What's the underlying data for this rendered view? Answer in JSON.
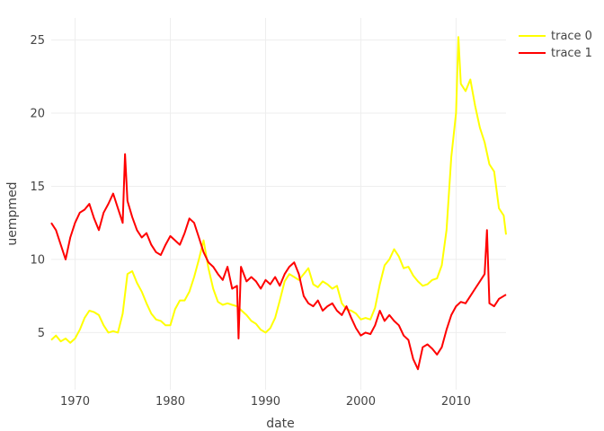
{
  "chart_data": {
    "type": "line",
    "title": "",
    "xlabel": "date",
    "ylabel": "uempmed",
    "x_axis_type": "date",
    "xlim": [
      "1967-07-01",
      "2015-04-01"
    ],
    "ylim": [
      1.1,
      26.5
    ],
    "x_ticks": [
      "1970",
      "1980",
      "1990",
      "2000",
      "2010"
    ],
    "y_ticks": [
      5,
      10,
      15,
      20,
      25
    ],
    "grid": true,
    "legend_position": "top-right",
    "series": [
      {
        "name": "trace 0",
        "color": "#ffff00",
        "points": [
          [
            "1967-07-01",
            4.5
          ],
          [
            "1968-01-01",
            4.8
          ],
          [
            "1968-07-01",
            4.4
          ],
          [
            "1969-01-01",
            4.6
          ],
          [
            "1969-07-01",
            4.3
          ],
          [
            "1970-01-01",
            4.6
          ],
          [
            "1970-07-01",
            5.2
          ],
          [
            "1971-01-01",
            6.0
          ],
          [
            "1971-07-01",
            6.5
          ],
          [
            "1972-01-01",
            6.4
          ],
          [
            "1972-07-01",
            6.2
          ],
          [
            "1973-01-01",
            5.5
          ],
          [
            "1973-07-01",
            5.0
          ],
          [
            "1974-01-01",
            5.1
          ],
          [
            "1974-07-01",
            5.0
          ],
          [
            "1975-01-01",
            6.3
          ],
          [
            "1975-07-01",
            9.0
          ],
          [
            "1976-01-01",
            9.2
          ],
          [
            "1976-07-01",
            8.4
          ],
          [
            "1977-01-01",
            7.8
          ],
          [
            "1977-07-01",
            7.0
          ],
          [
            "1978-01-01",
            6.3
          ],
          [
            "1978-07-01",
            5.9
          ],
          [
            "1979-01-01",
            5.8
          ],
          [
            "1979-07-01",
            5.5
          ],
          [
            "1980-01-01",
            5.5
          ],
          [
            "1980-07-01",
            6.6
          ],
          [
            "1981-01-01",
            7.2
          ],
          [
            "1981-07-01",
            7.2
          ],
          [
            "1982-01-01",
            7.8
          ],
          [
            "1982-07-01",
            8.8
          ],
          [
            "1983-01-01",
            10.0
          ],
          [
            "1983-07-01",
            11.3
          ],
          [
            "1984-01-01",
            9.4
          ],
          [
            "1984-07-01",
            8.0
          ],
          [
            "1985-01-01",
            7.1
          ],
          [
            "1985-07-01",
            6.9
          ],
          [
            "1986-01-01",
            7.0
          ],
          [
            "1986-07-01",
            6.9
          ],
          [
            "1987-01-01",
            6.8
          ],
          [
            "1987-07-01",
            6.5
          ],
          [
            "1988-01-01",
            6.2
          ],
          [
            "1988-07-01",
            5.8
          ],
          [
            "1989-01-01",
            5.6
          ],
          [
            "1989-07-01",
            5.2
          ],
          [
            "1990-01-01",
            5.0
          ],
          [
            "1990-07-01",
            5.3
          ],
          [
            "1991-01-01",
            6.0
          ],
          [
            "1991-07-01",
            7.2
          ],
          [
            "1992-01-01",
            8.5
          ],
          [
            "1992-07-01",
            9.0
          ],
          [
            "1993-01-01",
            8.8
          ],
          [
            "1993-07-01",
            8.6
          ],
          [
            "1994-01-01",
            9.0
          ],
          [
            "1994-07-01",
            9.4
          ],
          [
            "1995-01-01",
            8.3
          ],
          [
            "1995-07-01",
            8.1
          ],
          [
            "1996-01-01",
            8.5
          ],
          [
            "1996-07-01",
            8.3
          ],
          [
            "1997-01-01",
            8.0
          ],
          [
            "1997-07-01",
            8.2
          ],
          [
            "1998-01-01",
            7.0
          ],
          [
            "1998-07-01",
            6.6
          ],
          [
            "1999-01-01",
            6.5
          ],
          [
            "1999-07-01",
            6.3
          ],
          [
            "2000-01-01",
            5.9
          ],
          [
            "2000-07-01",
            6.0
          ],
          [
            "2001-01-01",
            5.9
          ],
          [
            "2001-07-01",
            6.7
          ],
          [
            "2002-01-01",
            8.3
          ],
          [
            "2002-07-01",
            9.6
          ],
          [
            "2003-01-01",
            10.0
          ],
          [
            "2003-07-01",
            10.7
          ],
          [
            "2004-01-01",
            10.2
          ],
          [
            "2004-07-01",
            9.4
          ],
          [
            "2005-01-01",
            9.5
          ],
          [
            "2005-07-01",
            8.9
          ],
          [
            "2006-01-01",
            8.5
          ],
          [
            "2006-07-01",
            8.2
          ],
          [
            "2007-01-01",
            8.3
          ],
          [
            "2007-07-01",
            8.6
          ],
          [
            "2008-01-01",
            8.7
          ],
          [
            "2008-07-01",
            9.6
          ],
          [
            "2009-01-01",
            12.0
          ],
          [
            "2009-07-01",
            17.0
          ],
          [
            "2010-01-01",
            20.0
          ],
          [
            "2010-04-01",
            25.2
          ],
          [
            "2010-07-01",
            22.0
          ],
          [
            "2011-01-01",
            21.5
          ],
          [
            "2011-07-01",
            22.3
          ],
          [
            "2012-01-01",
            20.5
          ],
          [
            "2012-07-01",
            19.0
          ],
          [
            "2013-01-01",
            18.0
          ],
          [
            "2013-07-01",
            16.5
          ],
          [
            "2014-01-01",
            16.0
          ],
          [
            "2014-07-01",
            13.5
          ],
          [
            "2015-01-01",
            13.0
          ],
          [
            "2015-04-01",
            11.7
          ]
        ]
      },
      {
        "name": "trace 1",
        "color": "#ff0000",
        "points": [
          [
            "1967-07-01",
            12.5
          ],
          [
            "1968-01-01",
            12.0
          ],
          [
            "1968-07-01",
            11.0
          ],
          [
            "1969-01-01",
            10.0
          ],
          [
            "1969-07-01",
            11.5
          ],
          [
            "1970-01-01",
            12.5
          ],
          [
            "1970-07-01",
            13.2
          ],
          [
            "1971-01-01",
            13.4
          ],
          [
            "1971-07-01",
            13.8
          ],
          [
            "1972-01-01",
            12.8
          ],
          [
            "1972-07-01",
            12.0
          ],
          [
            "1973-01-01",
            13.2
          ],
          [
            "1973-07-01",
            13.8
          ],
          [
            "1974-01-01",
            14.5
          ],
          [
            "1974-07-01",
            13.5
          ],
          [
            "1975-01-01",
            12.5
          ],
          [
            "1975-04-01",
            17.2
          ],
          [
            "1975-07-01",
            14.0
          ],
          [
            "1976-01-01",
            12.9
          ],
          [
            "1976-07-01",
            12.0
          ],
          [
            "1977-01-01",
            11.5
          ],
          [
            "1977-07-01",
            11.8
          ],
          [
            "1978-01-01",
            11.0
          ],
          [
            "1978-07-01",
            10.5
          ],
          [
            "1979-01-01",
            10.3
          ],
          [
            "1979-07-01",
            11.0
          ],
          [
            "1980-01-01",
            11.6
          ],
          [
            "1980-07-01",
            11.3
          ],
          [
            "1981-01-01",
            11.0
          ],
          [
            "1981-07-01",
            11.8
          ],
          [
            "1982-01-01",
            12.8
          ],
          [
            "1982-07-01",
            12.5
          ],
          [
            "1983-01-01",
            11.5
          ],
          [
            "1983-07-01",
            10.5
          ],
          [
            "1984-01-01",
            9.8
          ],
          [
            "1984-07-01",
            9.5
          ],
          [
            "1985-01-01",
            9.0
          ],
          [
            "1985-07-01",
            8.6
          ],
          [
            "1986-01-01",
            9.5
          ],
          [
            "1986-07-01",
            8.0
          ],
          [
            "1987-01-01",
            8.2
          ],
          [
            "1987-03-01",
            4.6
          ],
          [
            "1987-06-01",
            9.5
          ],
          [
            "1988-01-01",
            8.5
          ],
          [
            "1988-07-01",
            8.8
          ],
          [
            "1989-01-01",
            8.5
          ],
          [
            "1989-07-01",
            8.0
          ],
          [
            "1990-01-01",
            8.6
          ],
          [
            "1990-07-01",
            8.3
          ],
          [
            "1991-01-01",
            8.8
          ],
          [
            "1991-07-01",
            8.2
          ],
          [
            "1992-01-01",
            9.0
          ],
          [
            "1992-07-01",
            9.5
          ],
          [
            "1993-01-01",
            9.8
          ],
          [
            "1993-07-01",
            9.0
          ],
          [
            "1994-01-01",
            7.5
          ],
          [
            "1994-07-01",
            7.0
          ],
          [
            "1995-01-01",
            6.8
          ],
          [
            "1995-07-01",
            7.2
          ],
          [
            "1996-01-01",
            6.5
          ],
          [
            "1996-07-01",
            6.8
          ],
          [
            "1997-01-01",
            7.0
          ],
          [
            "1997-07-01",
            6.5
          ],
          [
            "1998-01-01",
            6.2
          ],
          [
            "1998-07-01",
            6.8
          ],
          [
            "1999-01-01",
            6.0
          ],
          [
            "1999-07-01",
            5.3
          ],
          [
            "2000-01-01",
            4.8
          ],
          [
            "2000-07-01",
            5.0
          ],
          [
            "2001-01-01",
            4.9
          ],
          [
            "2001-07-01",
            5.5
          ],
          [
            "2002-01-01",
            6.5
          ],
          [
            "2002-07-01",
            5.8
          ],
          [
            "2003-01-01",
            6.2
          ],
          [
            "2003-07-01",
            5.8
          ],
          [
            "2004-01-01",
            5.5
          ],
          [
            "2004-07-01",
            4.8
          ],
          [
            "2005-01-01",
            4.5
          ],
          [
            "2005-07-01",
            3.2
          ],
          [
            "2006-01-01",
            2.5
          ],
          [
            "2006-07-01",
            4.0
          ],
          [
            "2007-01-01",
            4.2
          ],
          [
            "2007-07-01",
            3.9
          ],
          [
            "2008-01-01",
            3.5
          ],
          [
            "2008-07-01",
            4.0
          ],
          [
            "2009-01-01",
            5.2
          ],
          [
            "2009-07-01",
            6.2
          ],
          [
            "2010-01-01",
            6.8
          ],
          [
            "2010-07-01",
            7.1
          ],
          [
            "2011-01-01",
            7.0
          ],
          [
            "2011-07-01",
            7.5
          ],
          [
            "2012-01-01",
            8.0
          ],
          [
            "2012-07-01",
            8.5
          ],
          [
            "2013-01-01",
            9.0
          ],
          [
            "2013-04-01",
            12.0
          ],
          [
            "2013-07-01",
            7.0
          ],
          [
            "2014-01-01",
            6.8
          ],
          [
            "2014-07-01",
            7.3
          ],
          [
            "2015-01-01",
            7.5
          ],
          [
            "2015-04-01",
            7.6
          ]
        ]
      }
    ]
  }
}
